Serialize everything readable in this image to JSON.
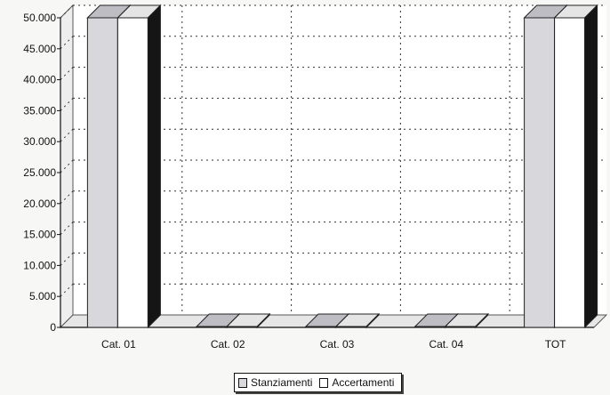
{
  "chart_data": {
    "type": "bar",
    "title": "",
    "xlabel": "",
    "ylabel": "",
    "categories": [
      "Cat. 01",
      "Cat. 02",
      "Cat. 03",
      "Cat. 04",
      "TOT"
    ],
    "series": [
      {
        "name": "Stanziamenti",
        "values": [
          50000,
          0,
          0,
          0,
          50000
        ],
        "color": "#d8d8dc"
      },
      {
        "name": "Accertamenti",
        "values": [
          50000,
          0,
          0,
          0,
          50000
        ],
        "color": "#ffffff"
      }
    ],
    "ylim": [
      0,
      50000
    ],
    "yticks": [
      0,
      5000,
      10000,
      15000,
      20000,
      25000,
      30000,
      35000,
      40000,
      45000,
      50000
    ],
    "ytick_labels": [
      "0",
      "5.000",
      "10.000",
      "15.000",
      "20.000",
      "25.000",
      "30.000",
      "35.000",
      "40.000",
      "45.000",
      "50.000"
    ],
    "grid": true,
    "style": "3d",
    "legend_position": "bottom-center"
  }
}
